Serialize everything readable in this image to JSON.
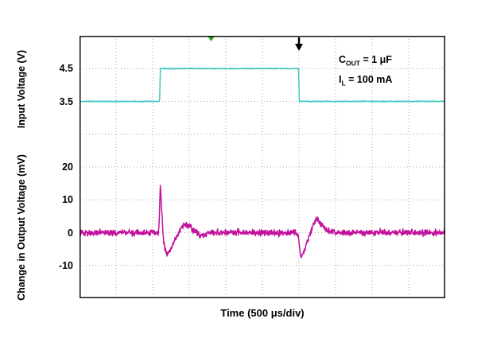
{
  "chart_data": {
    "type": "line",
    "background": "#ffffff",
    "x_axis": {
      "label": "Time (500 μs/div)",
      "divisions": 10,
      "us_per_div": 500
    },
    "y_axis_input": {
      "label": "Input Voltage (V)",
      "units_per_div": 1,
      "ticks": [
        {
          "label": "4.5",
          "value": 4.5,
          "div": 1
        },
        {
          "label": "3.5",
          "value": 3.5,
          "div": 2
        }
      ]
    },
    "y_axis_output": {
      "label": "Change in Output Voltage (mV)",
      "units_per_div": 10,
      "ticks": [
        {
          "label": "20",
          "value": 20,
          "div": 4
        },
        {
          "label": "10",
          "value": 10,
          "div": 5
        },
        {
          "label": "0",
          "value": 0,
          "div": 6
        },
        {
          "label": "-10",
          "value": -10,
          "div": 7
        }
      ]
    },
    "grid": {
      "cols": 10,
      "rows": 8,
      "style": "dotted",
      "color": "#a8a8a8"
    },
    "series": [
      {
        "name": "input_voltage",
        "unit": "V",
        "color": "#3fc8c0",
        "units_per_div": 1,
        "zero_div": 5.5,
        "noise": 0.013,
        "points": [
          [
            0,
            3.5
          ],
          [
            2.19,
            3.5
          ],
          [
            2.21,
            4.5
          ],
          [
            5.99,
            4.5
          ],
          [
            6.01,
            3.5
          ],
          [
            10,
            3.5
          ]
        ]
      },
      {
        "name": "output_voltage_change",
        "unit": "mV",
        "color": "#c2109c",
        "units_per_div": 10,
        "zero_div": 6,
        "noise": 0.9,
        "points": [
          [
            0,
            0
          ],
          [
            2.16,
            0
          ],
          [
            2.18,
            3
          ],
          [
            2.21,
            14.5
          ],
          [
            2.25,
            6
          ],
          [
            2.3,
            -3
          ],
          [
            2.38,
            -6.5
          ],
          [
            2.5,
            -5
          ],
          [
            2.62,
            -2
          ],
          [
            2.78,
            1.5
          ],
          [
            2.95,
            2.5
          ],
          [
            3.1,
            1
          ],
          [
            3.3,
            -0.8
          ],
          [
            3.5,
            0
          ],
          [
            5.9,
            0
          ],
          [
            5.98,
            -1
          ],
          [
            6.05,
            -7.5
          ],
          [
            6.15,
            -5.5
          ],
          [
            6.28,
            -1
          ],
          [
            6.42,
            3.5
          ],
          [
            6.52,
            4
          ],
          [
            6.65,
            2
          ],
          [
            6.8,
            0.5
          ],
          [
            7.0,
            0
          ],
          [
            10,
            0
          ]
        ]
      }
    ],
    "markers": {
      "trigger_arrow_div": 6.0,
      "trigger_color": "#000000",
      "green_tick_div": 3.6,
      "green_color": "#1fa51f"
    },
    "annotations": {
      "line1": {
        "main": "C",
        "sub": "OUT",
        "rest": " = 1 μF"
      },
      "line2": {
        "main": "I",
        "sub": "L",
        "rest": " = 100 mA"
      }
    }
  }
}
